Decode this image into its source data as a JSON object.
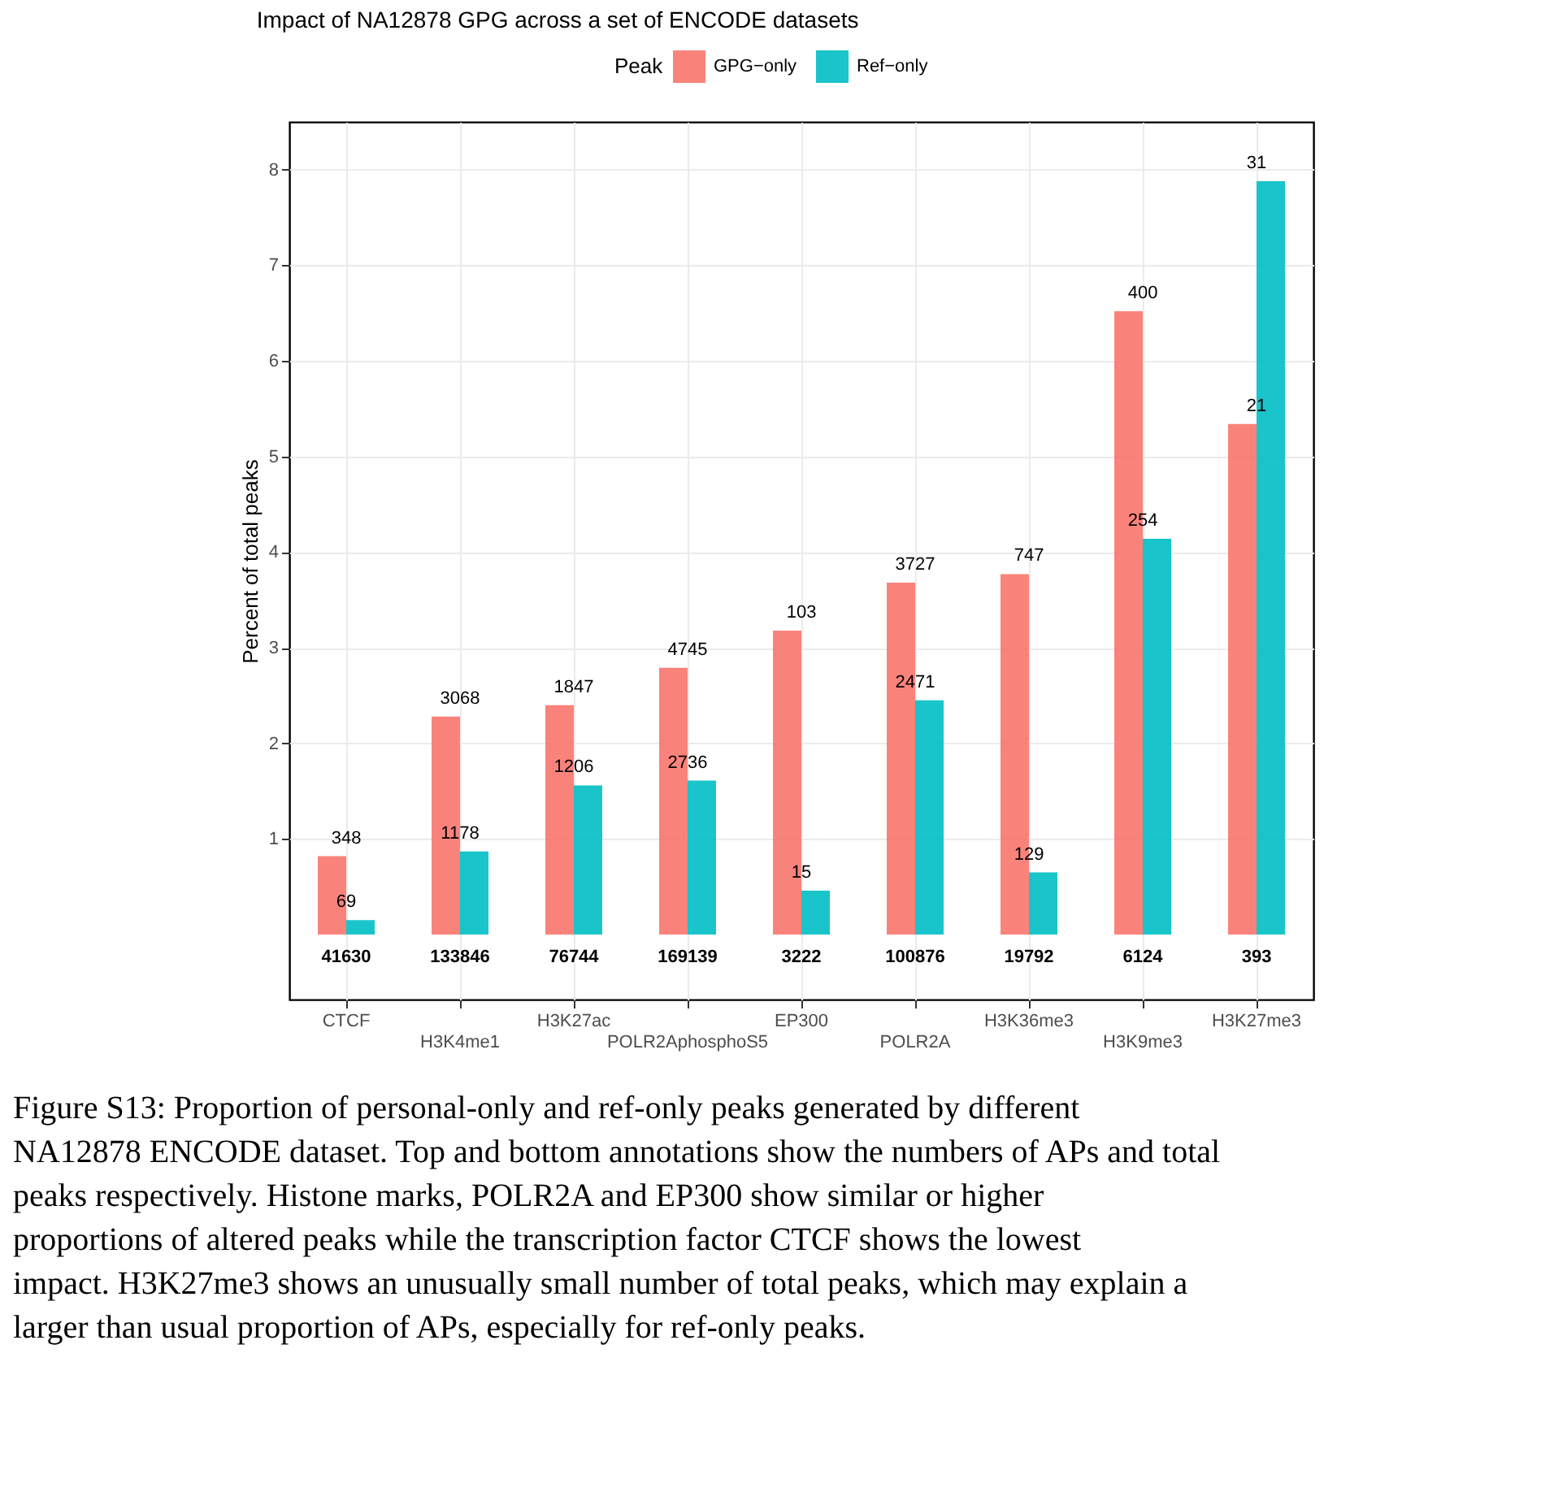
{
  "chart_data": {
    "type": "bar",
    "title": "Impact of NA12878 GPG across a set of ENCODE datasets",
    "ylabel": "Percent of total peaks",
    "legend_title": "Peak",
    "legend": "top",
    "categories": [
      "CTCF",
      "H3K4me1",
      "H3K27ac",
      "POLR2AphosphoS5",
      "EP300",
      "POLR2A",
      "H3K36me3",
      "H3K9me3",
      "H3K27me3"
    ],
    "series": [
      {
        "name": "GPG−only",
        "color": "#f8766d",
        "values": [
          0.82,
          2.28,
          2.4,
          2.79,
          3.18,
          3.68,
          3.77,
          6.52,
          5.34
        ]
      },
      {
        "name": "Ref−only",
        "color": "#00bfc4",
        "values": [
          0.15,
          0.87,
          1.56,
          1.61,
          0.46,
          2.45,
          0.65,
          4.14,
          7.88
        ]
      }
    ],
    "ylim": [
      -0.68,
      8.5
    ],
    "yticks": [
      1,
      2,
      3,
      4,
      5,
      6,
      7,
      8
    ],
    "grid": true,
    "annotations": [
      {
        "text": "348",
        "x": "CTCF",
        "y": 0.82
      },
      {
        "text": "3068",
        "x": "H3K4me1",
        "y": 2.28
      },
      {
        "text": "1847",
        "x": "H3K27ac",
        "y": 2.4
      },
      {
        "text": "4745",
        "x": "POLR2AphosphoS5",
        "y": 2.79
      },
      {
        "text": "103",
        "x": "EP300",
        "y": 3.18
      },
      {
        "text": "3727",
        "x": "POLR2A",
        "y": 3.68
      },
      {
        "text": "747",
        "x": "H3K36me3",
        "y": 3.77
      },
      {
        "text": "400",
        "x": "H3K9me3",
        "y": 6.52
      },
      {
        "text": "21",
        "x": "H3K27me3",
        "y": 5.34
      },
      {
        "text": "69",
        "x": "CTCF",
        "y": 0.15
      },
      {
        "text": "1178",
        "x": "H3K4me1",
        "y": 0.87
      },
      {
        "text": "1206",
        "x": "H3K27ac",
        "y": 1.56
      },
      {
        "text": "2736",
        "x": "POLR2AphosphoS5",
        "y": 1.61
      },
      {
        "text": "15",
        "x": "EP300",
        "y": 0.46
      },
      {
        "text": "2471",
        "x": "POLR2A",
        "y": 2.45
      },
      {
        "text": "129",
        "x": "H3K36me3",
        "y": 0.65
      },
      {
        "text": "254",
        "x": "H3K9me3",
        "y": 4.14
      },
      {
        "text": "31",
        "x": "H3K27me3",
        "y": 7.88
      },
      {
        "text": "41630",
        "x": "CTCF",
        "y": 0
      },
      {
        "text": "133846",
        "x": "H3K4me1",
        "y": 0
      },
      {
        "text": "76744",
        "x": "H3K27ac",
        "y": 0
      },
      {
        "text": "169139",
        "x": "POLR2AphosphoS5",
        "y": 0
      },
      {
        "text": "3222",
        "x": "EP300",
        "y": 0
      },
      {
        "text": "100876",
        "x": "POLR2A",
        "y": 0
      },
      {
        "text": "19792",
        "x": "H3K36me3",
        "y": 0
      },
      {
        "text": "6124",
        "x": "H3K9me3",
        "y": 0
      },
      {
        "text": "393",
        "x": "H3K27me3",
        "y": 0
      },
      "Figure S13: Proportion of personal-only and ref-only peaks generated by different NA12878 ENCODE dataset. Top and bottom annotations show the numbers of APs and total peaks respectively. Histone marks, POLR2A and EP300 show similar or higher proportions of altered peaks while the transcription factor CTCF shows the lowest impact. H3K27me3 shows an unusually small number of total peaks, which may explain a larger than usual proportion of APs, especially for ref-only peaks."
    ]
  }
}
